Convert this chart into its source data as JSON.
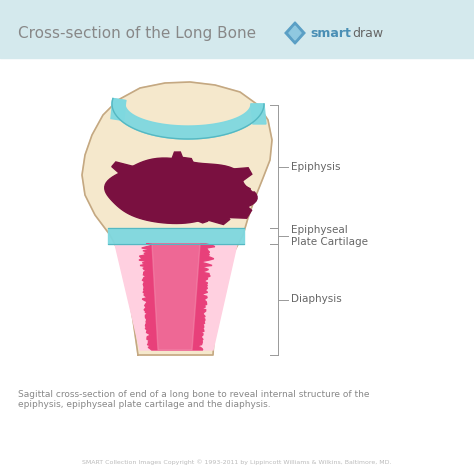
{
  "title": "Cross-section of the Long Bone",
  "title_fontsize": 11,
  "title_color": "#888888",
  "bg_color": "#ffffff",
  "header_bg": "#d4e9ed",
  "labels": [
    "Epiphysis",
    "Epiphyseal\nPlate Cartilage",
    "Diaphysis"
  ],
  "label_fontsize": 7.5,
  "label_color": "#666666",
  "caption": "Sagittal cross-section of end of a long bone to reveal internal structure of the\nepiphysis, epiphyseal plate cartilage and the diaphysis.",
  "caption_fontsize": 6.5,
  "caption_color": "#888888",
  "copyright": "SMART Collection Images Copyright © 1993-2011 by Lippincott Williams & Wilkins, Baltimore, MD.",
  "copyright_fontsize": 4.5,
  "bone_fill": "#f5e8cc",
  "bone_outline": "#c4a882",
  "cartilage_fill": "#7ed8e0",
  "cartilage_outline": "#55b8c2",
  "marrow_dark": "#7a1040",
  "marrow_pink": "#e8407a",
  "marrow_light": "#f590b0",
  "marrow_lightest": "#ffd0e0",
  "bracket_color": "#999999"
}
